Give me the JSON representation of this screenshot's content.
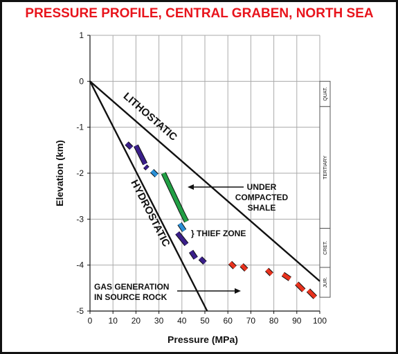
{
  "chart_data": {
    "type": "line",
    "title": "PRESSURE PROFILE, CENTRAL GRABEN, NORTH SEA",
    "title_color": "#e8141c",
    "xlabel": "Pressure (MPa)",
    "ylabel": "Elevation (km)",
    "xlim": [
      0,
      100
    ],
    "ylim": [
      -5,
      1
    ],
    "x_ticks": [
      "0",
      "10",
      "20",
      "30",
      "40",
      "50",
      "60",
      "70",
      "80",
      "90",
      "100"
    ],
    "y_ticks": [
      "1",
      "0",
      "-1",
      "-2",
      "-3",
      "-4",
      "-5"
    ],
    "grid": true,
    "series": [
      {
        "name": "LITHOSTATIC",
        "color": "#111111",
        "points": [
          [
            0,
            0
          ],
          [
            100,
            -4.35
          ]
        ]
      },
      {
        "name": "HYDROSTATIC",
        "color": "#111111",
        "points": [
          [
            0,
            0
          ],
          [
            51,
            -5
          ]
        ]
      }
    ],
    "measurements": [
      {
        "color": "#3a1f8a",
        "points": [
          [
            16,
            -1.35
          ],
          [
            18,
            -1.45
          ]
        ]
      },
      {
        "color": "#3a1f8a",
        "points": [
          [
            20,
            -1.4
          ],
          [
            24,
            -1.8
          ]
        ]
      },
      {
        "color": "#3a1f8a",
        "points": [
          [
            24,
            -1.85
          ],
          [
            25,
            -1.9
          ]
        ]
      },
      {
        "color": "#2a8fd6",
        "points": [
          [
            27,
            -1.95
          ],
          [
            29,
            -2.05
          ]
        ]
      },
      {
        "color": "#22a045",
        "points": [
          [
            32,
            -2.0
          ],
          [
            40,
            -2.85
          ]
        ]
      },
      {
        "color": "#22a045",
        "points": [
          [
            40,
            -2.85
          ],
          [
            42,
            -3.05
          ]
        ]
      },
      {
        "color": "#2a8fd6",
        "points": [
          [
            39,
            -3.1
          ],
          [
            41,
            -3.25
          ]
        ]
      },
      {
        "color": "#3a1f8a",
        "points": [
          [
            38,
            -3.3
          ],
          [
            42,
            -3.55
          ]
        ]
      },
      {
        "color": "#3a1f8a",
        "points": [
          [
            44,
            -3.7
          ],
          [
            46,
            -3.85
          ]
        ]
      },
      {
        "color": "#3a1f8a",
        "points": [
          [
            48,
            -3.85
          ],
          [
            50,
            -3.95
          ]
        ]
      },
      {
        "color": "#e8321e",
        "points": [
          [
            61,
            -3.95
          ],
          [
            63,
            -4.05
          ]
        ]
      },
      {
        "color": "#e8321e",
        "points": [
          [
            66,
            -4.0
          ],
          [
            68,
            -4.1
          ]
        ]
      },
      {
        "color": "#e8321e",
        "points": [
          [
            77,
            -4.1
          ],
          [
            79,
            -4.2
          ]
        ]
      },
      {
        "color": "#e8321e",
        "points": [
          [
            84,
            -4.2
          ],
          [
            87,
            -4.3
          ]
        ]
      },
      {
        "color": "#e8321e",
        "points": [
          [
            90,
            -4.4
          ],
          [
            93,
            -4.55
          ]
        ]
      },
      {
        "color": "#e8321e",
        "points": [
          [
            95,
            -4.55
          ],
          [
            98,
            -4.7
          ]
        ]
      }
    ],
    "annotations": {
      "lithostatic": "LITHOSTATIC",
      "hydrostatic": "HYDROSTATIC",
      "under_line1": "UNDER",
      "under_line2": "COMPACTED",
      "under_line3": "SHALE",
      "thief": "} THIEF ZONE",
      "gas_line1": "GAS GENERATION",
      "gas_line2": "IN SOURCE ROCK"
    },
    "strat_column": [
      {
        "label": "QUAT.",
        "top": 0,
        "bottom": -0.55
      },
      {
        "label": "TERTIARY",
        "top": -0.55,
        "bottom": -3.2
      },
      {
        "label": "CRET.",
        "top": -3.2,
        "bottom": -4.05
      },
      {
        "label": "JUR.",
        "top": -4.05,
        "bottom": -4.7
      }
    ]
  }
}
